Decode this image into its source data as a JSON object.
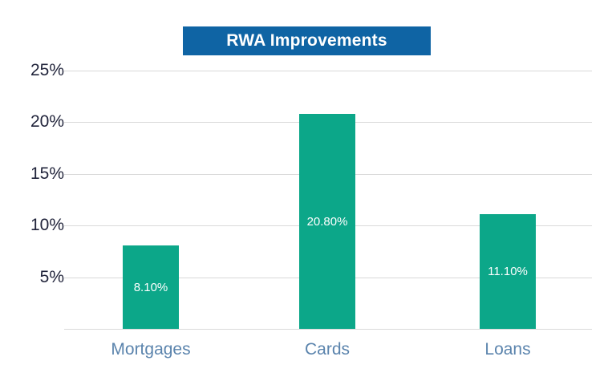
{
  "chart_data": {
    "type": "bar",
    "title": "RWA Improvements",
    "categories": [
      "Mortgages",
      "Cards",
      "Loans"
    ],
    "values": [
      8.1,
      20.8,
      11.1
    ],
    "value_labels": [
      "8.10%",
      "20.80%",
      "11.10%"
    ],
    "y_ticks": [
      5,
      10,
      15,
      20,
      25
    ],
    "y_tick_labels": [
      "5%",
      "10%",
      "15%",
      "20%",
      "25%"
    ],
    "ylim": [
      0,
      25
    ],
    "grid": "horizontal",
    "legend": "none",
    "value_label_position": "inside-center",
    "colors": {
      "bar": "#0ca789",
      "title_bg": "#0f64a4",
      "title_text": "#ffffff",
      "tick_label": "#21243b",
      "category_label": "#5b84ad",
      "gridline": "#d9d9d9",
      "value_label": "#ffffff"
    }
  }
}
